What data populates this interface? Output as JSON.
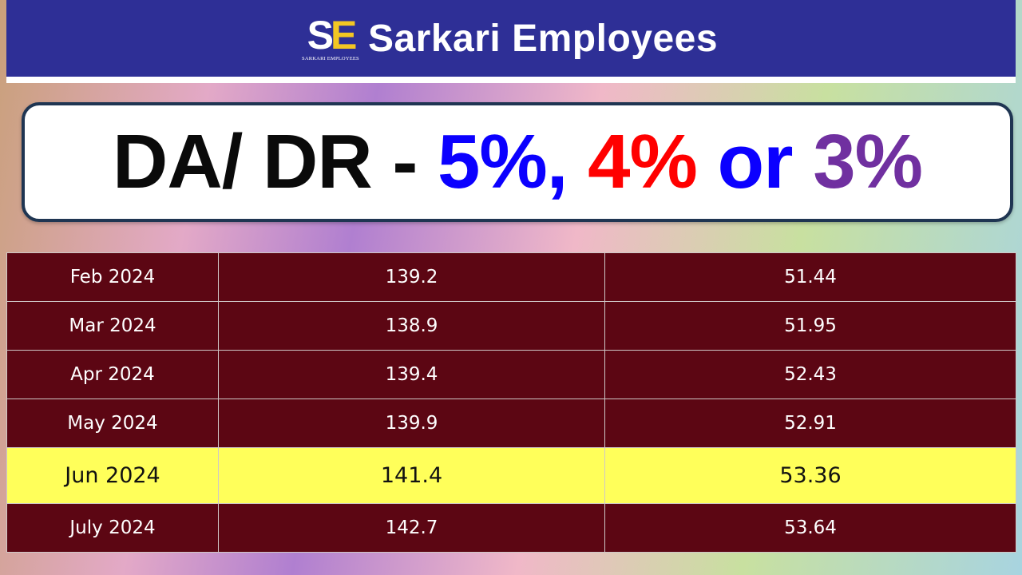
{
  "header": {
    "logo_letters": {
      "s": "S",
      "e": "E"
    },
    "logo_subtitle": "SARKARI EMPLOYEES",
    "brand": "Sarkari Employees",
    "colors": {
      "background": "#2e2f96",
      "logo_accent": "#f3c623"
    }
  },
  "title": {
    "part1": "DA/ DR - ",
    "part2": "5%, ",
    "part3": "4% ",
    "part4": "or ",
    "part5": "3%",
    "colors": {
      "black": "#0a0a0a",
      "blue": "#0b00ff",
      "red": "#ff0000",
      "purple": "#7030a0"
    }
  },
  "table": {
    "row_color": "#5c0613",
    "highlight_color": "#ffff5a",
    "rows": [
      {
        "month": "Feb 2024",
        "index": "139.2",
        "da": "51.44",
        "highlighted": false
      },
      {
        "month": "Mar 2024",
        "index": "138.9",
        "da": "51.95",
        "highlighted": false
      },
      {
        "month": "Apr 2024",
        "index": "139.4",
        "da": "52.43",
        "highlighted": false
      },
      {
        "month": "May 2024",
        "index": "139.9",
        "da": "52.91",
        "highlighted": false
      },
      {
        "month": "Jun 2024",
        "index": "141.4",
        "da": "53.36",
        "highlighted": true
      },
      {
        "month": "July 2024",
        "index": "142.7",
        "da": "53.64",
        "highlighted": false
      }
    ]
  }
}
